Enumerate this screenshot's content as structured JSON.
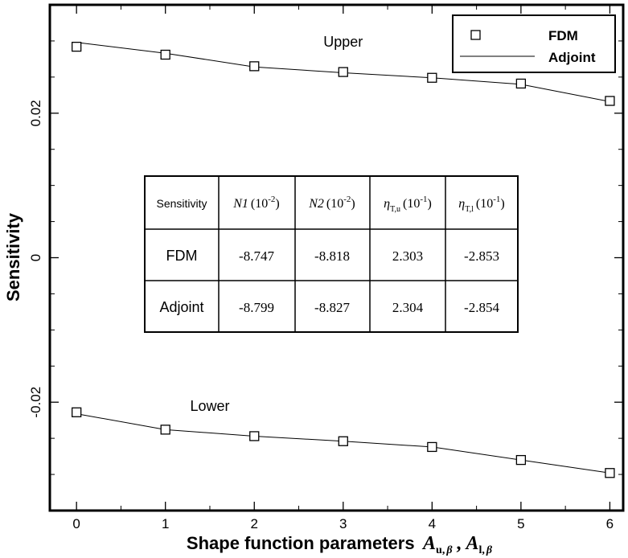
{
  "chart_data": {
    "type": "line",
    "title": "",
    "xlabel": "Shape function parameters",
    "xlabel_math": {
      "A": "A",
      "sub_u": "u",
      "sep": ",",
      "A2": "A",
      "sub_l": "l",
      "beta": "β"
    },
    "ylabel": "Sensitivity",
    "xlim": [
      -0.3,
      6.15
    ],
    "ylim": [
      -0.035,
      0.035
    ],
    "x_ticks": [
      0,
      1,
      2,
      3,
      4,
      5,
      6
    ],
    "x_tick_labels": [
      "0",
      "1",
      "2",
      "3",
      "4",
      "5",
      "6"
    ],
    "y_ticks": [
      -0.02,
      0,
      0.02
    ],
    "y_tick_labels": [
      "-0.02",
      "0",
      "0.02"
    ],
    "y_minor_step": 0.005,
    "grid": false,
    "legend_position": "top-right",
    "legend": [
      {
        "label": "FDM",
        "style": "square-marker"
      },
      {
        "label": "Adjoint",
        "style": "line"
      }
    ],
    "annotations": [
      {
        "text": "Upper",
        "x": 3.0,
        "y": 0.0292
      },
      {
        "text": "Lower",
        "x": 1.5,
        "y": -0.0212
      }
    ],
    "x": [
      0,
      1,
      2,
      3,
      4,
      5,
      6
    ],
    "curves": [
      {
        "group": "Upper",
        "fdm": [
          0.0292,
          0.0281,
          0.0265,
          0.0257,
          0.0249,
          0.0241,
          0.0217
        ],
        "adjoint": [
          0.0298,
          0.0283,
          0.0264,
          0.0256,
          0.0249,
          0.024,
          0.0216
        ]
      },
      {
        "group": "Lower",
        "fdm": [
          -0.0214,
          -0.0238,
          -0.0247,
          -0.0254,
          -0.0262,
          -0.028,
          -0.0298
        ],
        "adjoint": [
          -0.0216,
          -0.0238,
          -0.0247,
          -0.0254,
          -0.0262,
          -0.028,
          -0.0298
        ]
      }
    ],
    "inset_table": {
      "header": [
        {
          "main": "Sensitivity"
        },
        {
          "main": "N1",
          "unit_base": "(10",
          "unit_exp": "-2",
          "unit_close": ")"
        },
        {
          "main": "N2",
          "unit_base": "(10",
          "unit_exp": "-2",
          "unit_close": ")"
        },
        {
          "main": "η",
          "sub": "T,u",
          "unit_base": "(10",
          "unit_exp": "-1",
          "unit_close": ")"
        },
        {
          "main": "η",
          "sub": "T,l",
          "unit_base": "(10",
          "unit_exp": "-1",
          "unit_close": ")"
        }
      ],
      "rows": [
        {
          "label": "FDM",
          "values": [
            "-8.747",
            "-8.818",
            "2.303",
            "-2.853"
          ]
        },
        {
          "label": "Adjoint",
          "values": [
            "-8.799",
            "-8.827",
            "2.304",
            "-2.854"
          ]
        }
      ]
    }
  }
}
